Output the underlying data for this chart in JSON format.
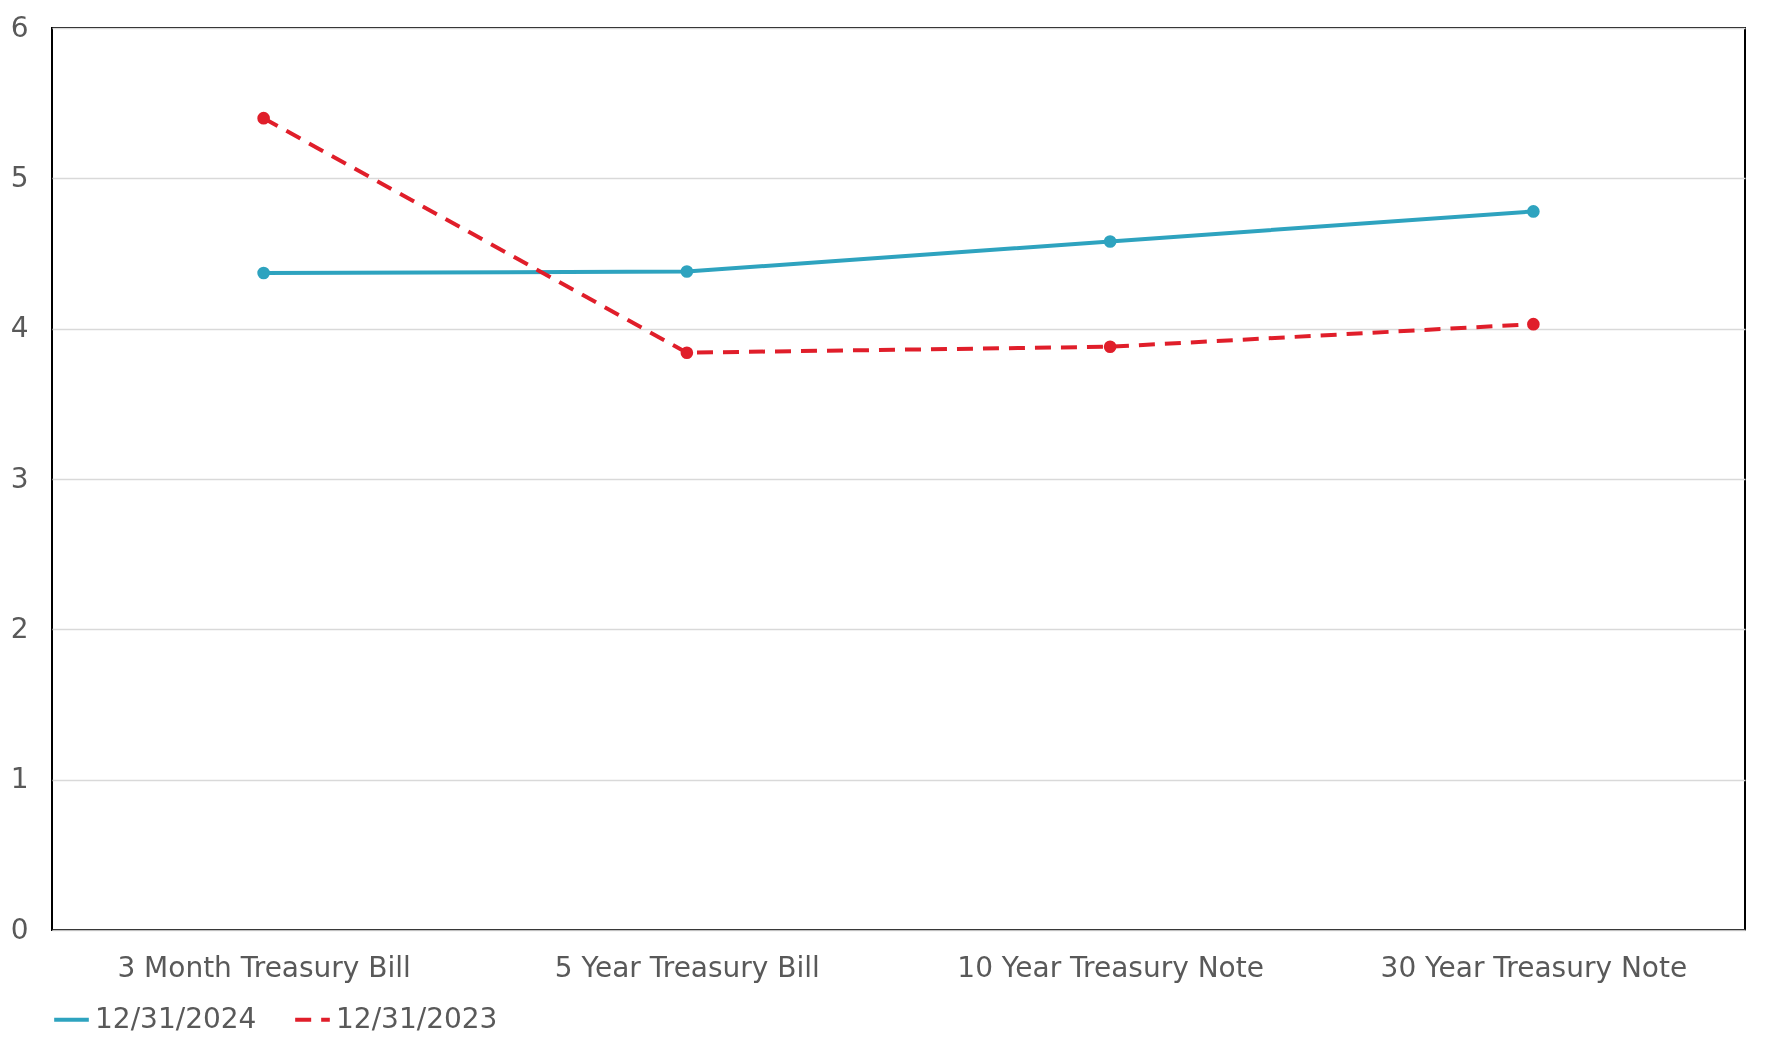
{
  "chart_data": {
    "type": "line",
    "categories": [
      "3 Month Treasury Bill",
      "5 Year Treasury Bill",
      "10 Year Treasury Note",
      "30 Year Treasury Note"
    ],
    "series": [
      {
        "name": "12/31/2024",
        "color": "#2ea3bf",
        "line_style": "solid",
        "values": [
          4.37,
          4.38,
          4.58,
          4.78
        ]
      },
      {
        "name": "12/31/2023",
        "color": "#e01e2a",
        "line_style": "dashed",
        "values": [
          5.4,
          3.84,
          3.88,
          4.03
        ]
      }
    ],
    "ylim": [
      0,
      6
    ],
    "yticks": [
      0,
      1,
      2,
      3,
      4,
      5,
      6
    ],
    "grid": "y",
    "legend": "bottom",
    "marker": "circle"
  }
}
